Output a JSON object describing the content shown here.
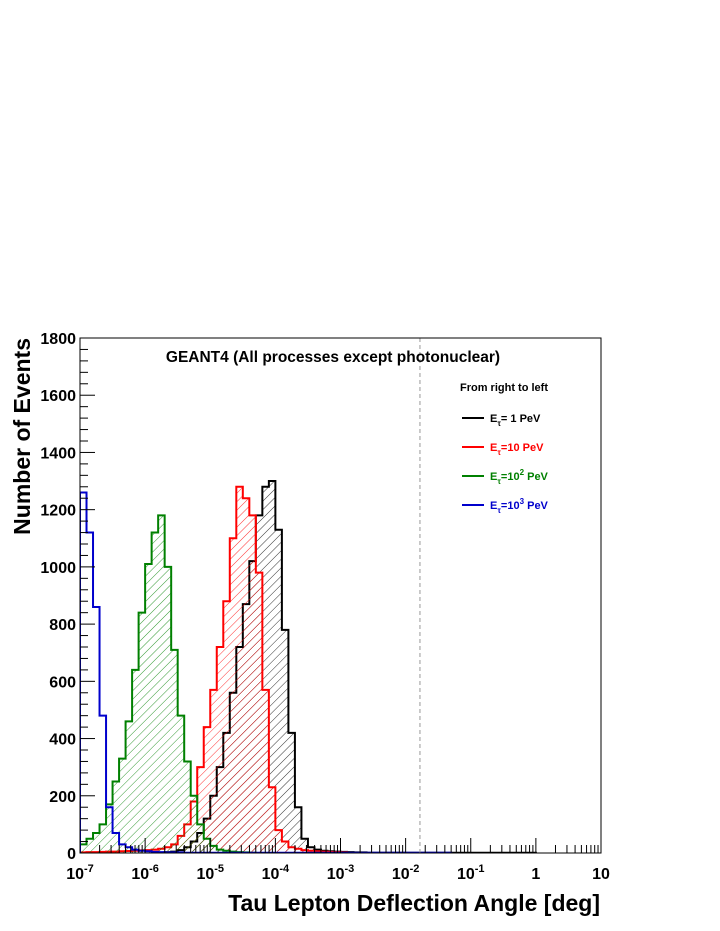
{
  "chart_data": {
    "type": "histogram",
    "title": "GEANT4 (All processes except photonuclear)",
    "xlabel": "Tau Lepton Deflection Angle [deg]",
    "ylabel": "Number of Events",
    "xscale": "log",
    "xlim_log10": [
      -7,
      1
    ],
    "ylim": [
      0,
      1800
    ],
    "yticks": [
      0,
      200,
      400,
      600,
      800,
      1000,
      1200,
      1400,
      1600,
      1800
    ],
    "xticks": [
      {
        "label": "10",
        "sup": "-7",
        "log10": -7
      },
      {
        "label": "10",
        "sup": "-6",
        "log10": -6
      },
      {
        "label": "10",
        "sup": "-5",
        "log10": -5
      },
      {
        "label": "10",
        "sup": "-4",
        "log10": -4
      },
      {
        "label": "10",
        "sup": "-3",
        "log10": -3
      },
      {
        "label": "10",
        "sup": "-2",
        "log10": -2
      },
      {
        "label": "10",
        "sup": "-1",
        "log10": -1
      },
      {
        "label": "1",
        "sup": "",
        "log10": 0
      },
      {
        "label": "10",
        "sup": "",
        "log10": 1
      }
    ],
    "vline_log10": -1.78,
    "legend_header": "From right to left",
    "bin_width_log10": 0.1,
    "series": [
      {
        "name": "E_τ= 1 PeV",
        "legend": {
          "pre": "E",
          "sub": "τ",
          "mid": "= 1 PeV",
          "sup": "",
          "post": ""
        },
        "color": "#000000",
        "hatch_dir": "right",
        "bins_log10_start": -5.7,
        "values": [
          3,
          5,
          10,
          20,
          40,
          70,
          120,
          200,
          300,
          420,
          560,
          720,
          870,
          1020,
          1180,
          1280,
          1300,
          1130,
          780,
          420,
          160,
          50,
          20,
          12,
          8,
          6,
          5,
          4,
          3,
          2,
          2,
          1,
          1,
          1,
          1,
          1,
          1,
          1,
          1,
          1,
          1,
          1,
          1,
          1,
          1,
          1,
          1,
          1,
          1,
          1,
          1,
          1,
          1,
          1,
          1,
          1,
          1
        ]
      },
      {
        "name": "E_τ=10 PeV",
        "legend": {
          "pre": "E",
          "sub": "τ",
          "mid": "=10 PeV",
          "sup": "",
          "post": ""
        },
        "color": "#ff0000",
        "hatch_dir": "right",
        "bins_log10_start": -7,
        "values": [
          2,
          3,
          3,
          4,
          5,
          5,
          6,
          7,
          8,
          9,
          10,
          12,
          15,
          20,
          30,
          60,
          100,
          180,
          300,
          440,
          570,
          720,
          880,
          1100,
          1280,
          1240,
          1180,
          980,
          570,
          230,
          80,
          40,
          20,
          15,
          10,
          8,
          6,
          5,
          4,
          3,
          2
        ]
      },
      {
        "name": "E_τ=10^2 PeV",
        "legend": {
          "pre": "E",
          "sub": "τ",
          "mid": "=10",
          "sup": "2",
          "post": " PeV"
        },
        "color": "#008000",
        "hatch_dir": "right",
        "bins_log10_start": -7.1,
        "values": [
          10,
          30,
          50,
          70,
          100,
          170,
          250,
          330,
          460,
          640,
          840,
          1010,
          1120,
          1180,
          1000,
          710,
          480,
          320,
          200,
          100,
          50,
          25,
          12,
          8,
          5,
          3,
          2,
          1
        ]
      },
      {
        "name": "E_τ=10^3 PeV",
        "legend": {
          "pre": "E",
          "sub": "τ",
          "mid": "=10",
          "sup": "3",
          "post": " PeV"
        },
        "color": "#0000cc",
        "hatch_dir": "none",
        "bins_log10_start": -7,
        "values": [
          1260,
          1120,
          860,
          480,
          160,
          70,
          30,
          20,
          12,
          8,
          6,
          4,
          3,
          2,
          2,
          2,
          1,
          1,
          1,
          1,
          1,
          1,
          1,
          1,
          1,
          1,
          1,
          1,
          1,
          1,
          1,
          1,
          1,
          1,
          1,
          1,
          1,
          1,
          1,
          1,
          1,
          1,
          1,
          1,
          1,
          1,
          1,
          1,
          1,
          1,
          1,
          1,
          1,
          1,
          1,
          1,
          1
        ]
      }
    ],
    "legend_placement": "upper-right",
    "grid": false
  }
}
